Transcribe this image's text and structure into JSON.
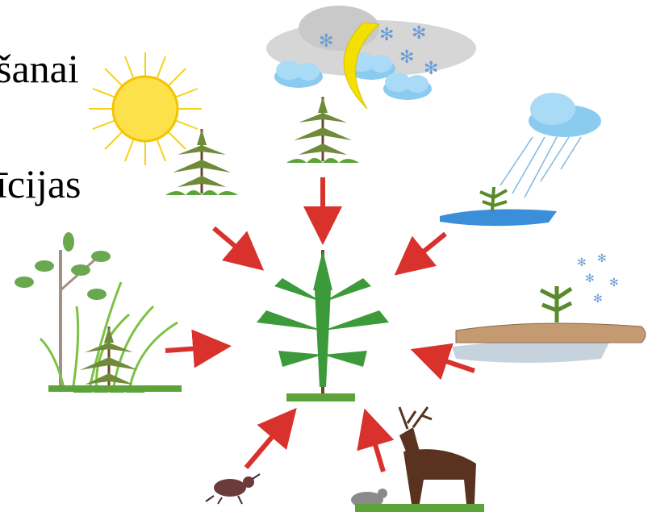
{
  "text_lines": [
    "šanai",
    "īcijas"
  ]
}
